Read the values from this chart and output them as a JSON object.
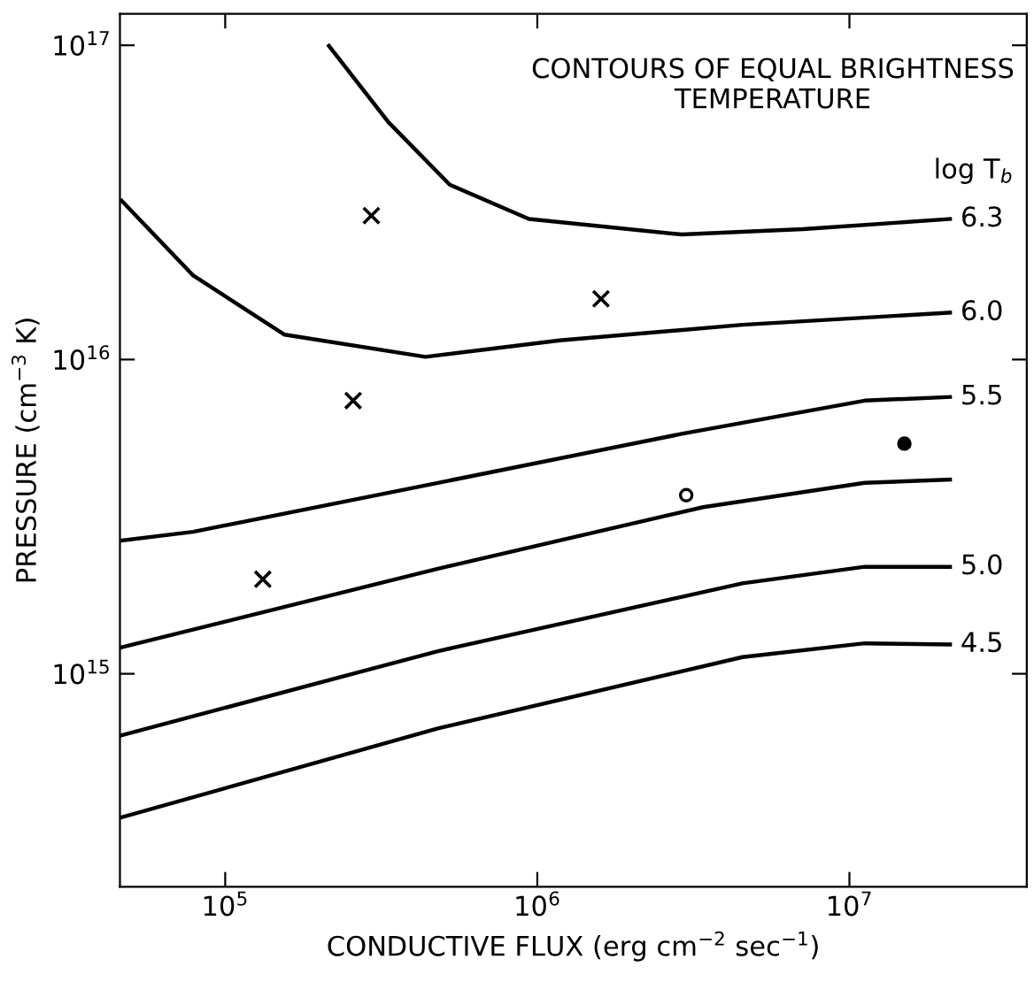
{
  "chart_data": {
    "type": "line",
    "xlabel": "CONDUCTIVE FLUX (erg cm$^{−2}$ sec$^{−1}$)",
    "ylabel": "PRESSURE (cm$^{−3}$ K)",
    "log": "xy",
    "grid": false,
    "xlim": [
      46000,
      37000000
    ],
    "ylim": [
      210000000000000,
      126000000000000000
    ],
    "xticks": [
      {
        "value": 100000,
        "label": "10$^{5}$"
      },
      {
        "value": 1000000,
        "label": "10$^{6}$"
      },
      {
        "value": 10000000,
        "label": "10$^{7}$"
      }
    ],
    "yticks": [
      {
        "value": 1000000000000000,
        "label": "10$^{15}$"
      },
      {
        "value": 10000000000000000,
        "label": "10$^{16}$"
      },
      {
        "value": 100000000000000000,
        "label": "10$^{17}$"
      }
    ],
    "annotations": [
      "CONTOURS OF EQUAL BRIGHTNESS\nTEMPERATURE",
      "log T$_{b}$"
    ],
    "series": [
      {
        "name": "6.3",
        "color": "#000000",
        "x": [
          215000,
          333000,
          524000,
          940000,
          2900000,
          7100000,
          21000000
        ],
        "values": [
          99500000000000000,
          57000000000000000,
          36000000000000000,
          28000000000000000,
          25000000000000000,
          26000000000000000,
          28000000000000000
        ]
      },
      {
        "name": "6.0",
        "color": "#000000",
        "x": [
          46600,
          79000,
          155000,
          438000,
          1180000,
          4540000,
          21000000
        ],
        "values": [
          32000000000000000,
          18500000000000000,
          12000000000000000,
          10200000000000000,
          11500000000000000,
          12900000000000000,
          14100000000000000
        ]
      },
      {
        "name": "5.5",
        "color": "#000000",
        "x": [
          46000,
          79000,
          480000,
          2900000,
          11200000,
          21000000
        ],
        "values": [
          2650000000000000,
          2830000000000000,
          4050000000000000,
          5800000000000000,
          7400000000000000,
          7600000000000000
        ]
      },
      {
        "color": "#000000",
        "x": [
          46000,
          480000,
          3400000,
          11200000,
          21000000
        ],
        "values": [
          1210000000000000,
          2160000000000000,
          3390000000000000,
          4050000000000000,
          4150000000000000
        ]
      },
      {
        "name": "5.0",
        "color": "#000000",
        "x": [
          46000,
          480000,
          4540000,
          11200000,
          21000000
        ],
        "values": [
          635000000000000,
          1180000000000000,
          1940000000000000,
          2190000000000000,
          2190000000000000
        ]
      },
      {
        "name": "4.5",
        "color": "#000000",
        "x": [
          46000,
          480000,
          4540000,
          11200000,
          21000000
        ],
        "values": [
          348000000000000,
          670000000000000,
          1130000000000000,
          1250000000000000,
          1240000000000000
        ]
      },
      {
        "type": "scatter",
        "marker": "cross",
        "color": "#000000",
        "x": [
          294000,
          1600000,
          257000,
          132000
        ],
        "values": [
          28700000000000000,
          15600000000000000,
          7400000000000000,
          2000000000000000
        ]
      },
      {
        "type": "scatter",
        "marker": "circle",
        "color": "#ffffff",
        "x": [
          3000000
        ],
        "values": [
          3700000000000000
        ]
      },
      {
        "type": "scatter",
        "marker": "circle",
        "color": "#000000",
        "x": [
          15000000
        ],
        "values": [
          5400000000000000
        ]
      }
    ]
  }
}
